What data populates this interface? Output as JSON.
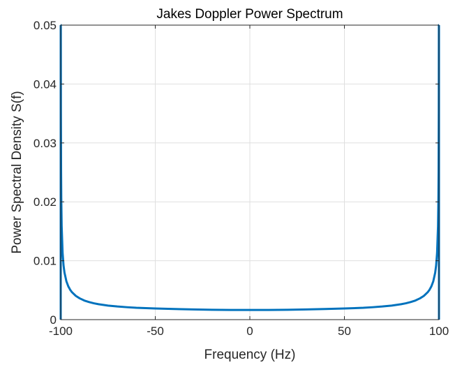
{
  "chart_data": {
    "type": "line",
    "title": "Jakes Doppler Power Spectrum",
    "xlabel": "Frequency (Hz)",
    "ylabel": "Power Spectral Density S(f)",
    "xlim": [
      -100,
      100
    ],
    "ylim": [
      0,
      0.05
    ],
    "grid": true,
    "box": true,
    "x_ticks": [
      -100,
      -50,
      0,
      50,
      100
    ],
    "x_tick_labels": [
      "-100",
      "-50",
      "0",
      "50",
      "100"
    ],
    "y_ticks": [
      0,
      0.01,
      0.02,
      0.03,
      0.04,
      0.05
    ],
    "y_tick_labels": [
      "0",
      "0.01",
      "0.02",
      "0.03",
      "0.04",
      "0.05"
    ],
    "series": [
      {
        "color": "#0072BD",
        "x": [
          -100,
          -99.95,
          -99.9,
          -99.8,
          -99.7,
          -99.5,
          -99,
          -98.5,
          -98,
          -97,
          -96,
          -95,
          -94,
          -92,
          -90,
          -87.5,
          -85,
          -82.5,
          -80,
          -75,
          -70,
          -65,
          -60,
          -50,
          -40,
          -30,
          -20,
          -10,
          0,
          10,
          20,
          30,
          40,
          50,
          60,
          65,
          70,
          75,
          80,
          82.5,
          85,
          87.5,
          90,
          92,
          94,
          95,
          96,
          97,
          98,
          98.5,
          99,
          99.5,
          99.7,
          99.8,
          99.9,
          99.95,
          100
        ],
        "y": [
          0.05,
          0.0503,
          0.0356,
          0.0252,
          0.0206,
          0.0159,
          0.0113,
          0.0092,
          0.00797,
          0.00652,
          0.00566,
          0.00507,
          0.00464,
          0.00403,
          0.00362,
          0.00324,
          0.00298,
          0.00278,
          0.00262,
          0.00239,
          0.00223,
          0.00211,
          0.00201,
          0.00189,
          0.0018,
          0.00173,
          0.00168,
          0.00165,
          0.00164,
          0.00165,
          0.00168,
          0.00173,
          0.0018,
          0.00189,
          0.00201,
          0.00211,
          0.00223,
          0.00239,
          0.00262,
          0.00278,
          0.00298,
          0.00324,
          0.00362,
          0.00403,
          0.00464,
          0.00507,
          0.00566,
          0.00652,
          0.00797,
          0.0092,
          0.0113,
          0.0159,
          0.0206,
          0.0252,
          0.0356,
          0.0503,
          0.05
        ]
      }
    ],
    "edge_spikes": [
      {
        "x": -100,
        "y_from": 0,
        "y_to": 0.05
      },
      {
        "x": 100,
        "y_from": 0,
        "y_to": 0.05
      }
    ]
  }
}
